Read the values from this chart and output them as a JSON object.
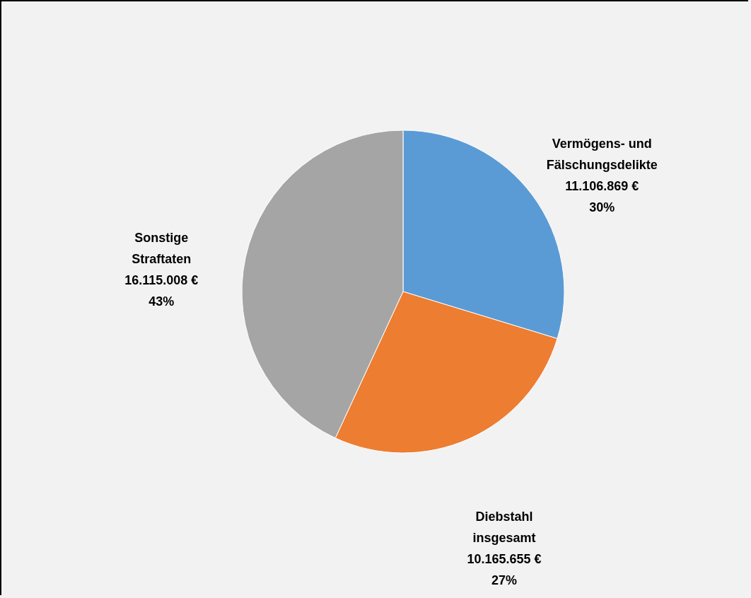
{
  "chart_data": {
    "type": "pie",
    "categories": [
      "Vermögens- und Fälschungsdelikte",
      "Diebstahl insgesamt",
      "Sonstige Straftaten"
    ],
    "values": [
      11106869,
      10165655,
      16115008
    ],
    "value_labels": [
      "11.106.869 € 30%",
      "10.165.655 € 27%",
      "16.115.008 € 43%"
    ],
    "colors": [
      "#5b9bd5",
      "#ed7d31",
      "#a5a5a5"
    ]
  }
}
